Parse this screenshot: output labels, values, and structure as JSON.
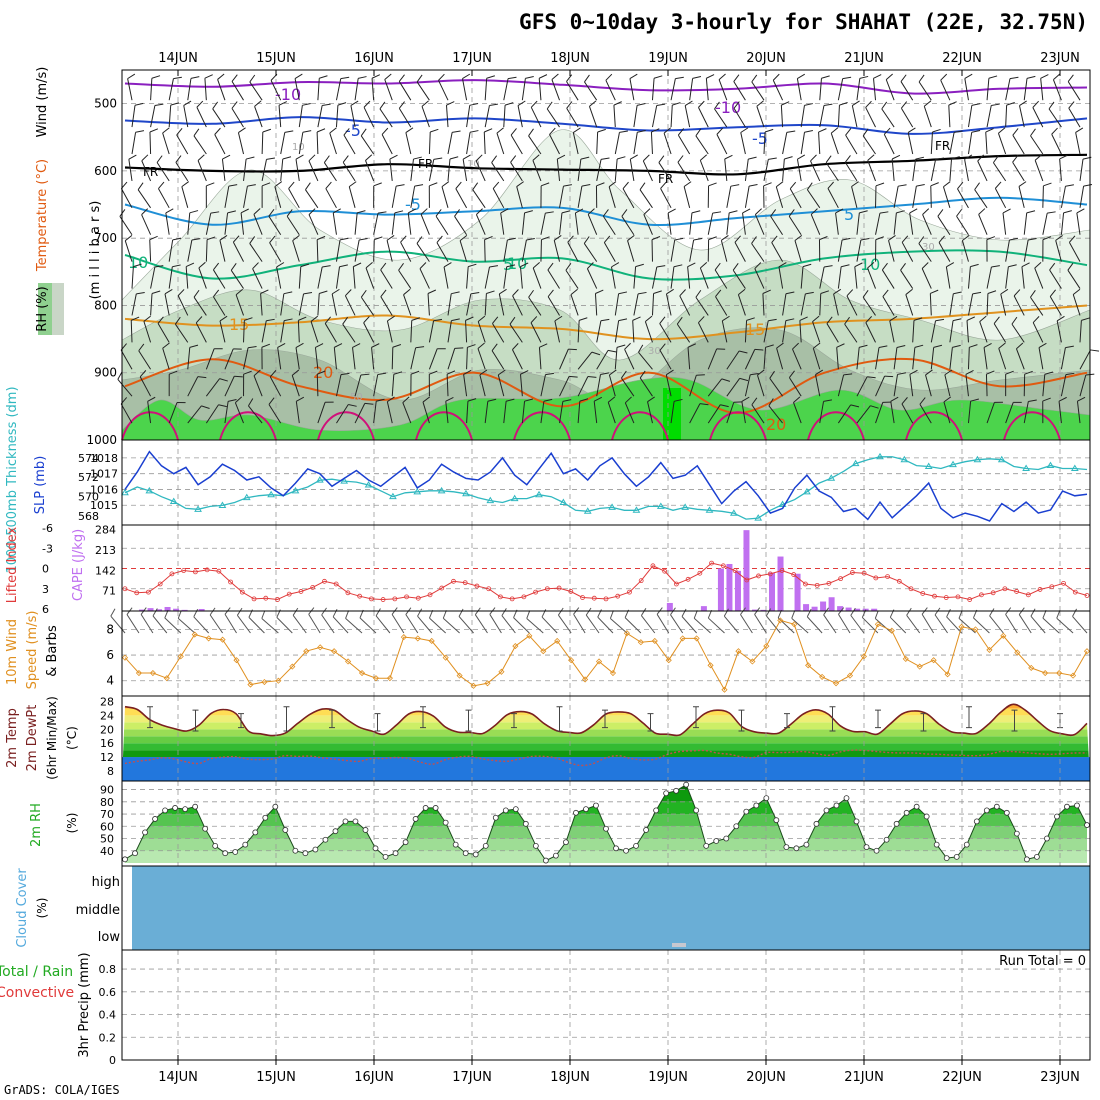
{
  "header": {
    "title": "GFS 0~10day 3-hourly for SHAHAT (22E, 32.75N)",
    "credit": "GrADS: COLA/IGES"
  },
  "colors": {
    "grid": "#999999",
    "temp_neg10": "#8a1fbf",
    "temp_neg5": "#1f46c9",
    "temp_fr": "#000000",
    "temp_5": "#1f8fd6",
    "temp_10": "#10b27a",
    "temp_15": "#e0921f",
    "temp_20": "#e05a10",
    "temp_25": "#d0107a",
    "slp": "#1a3fd0",
    "thickness": "#30b8c0",
    "cape": "#c070f0",
    "lifted_index": "#e03a3a",
    "wind_speed": "#e09020",
    "cloud": "#6aaed6",
    "rh2m": "#44bb44"
  },
  "chart_data": [
    {
      "panel": "upper-air",
      "type": "contour",
      "x_ticks": [
        "14JUN",
        "15JUN",
        "16JUN",
        "17JUN",
        "18JUN",
        "19JUN",
        "20JUN",
        "21JUN",
        "22JUN",
        "23JUN"
      ],
      "y_ticks": [
        "500",
        "600",
        "700",
        "800",
        "900",
        "1000"
      ],
      "ylabel_parts": [
        "RH (%)",
        "Temperature (°C)",
        "Wind (m/s)"
      ],
      "ylabel_units": "(m i l l i b a r s)",
      "ylim": [
        1000,
        450
      ],
      "contour_labels": [
        "-10",
        "-10",
        "-5",
        "-5",
        "-5",
        "FR",
        "FR",
        "FR",
        "FR",
        "5",
        "5",
        "10",
        "10",
        "10",
        "15",
        "15",
        "20",
        "20",
        "10",
        "10",
        "30",
        "30",
        "50"
      ],
      "isotherms": [
        {
          "label": "-10",
          "level": [
            470,
            475,
            468,
            470,
            465,
            472,
            480,
            478,
            470,
            485,
            478,
            476
          ]
        },
        {
          "label": "-5",
          "level": [
            525,
            530,
            520,
            528,
            522,
            530,
            540,
            535,
            532,
            545,
            535,
            522
          ]
        },
        {
          "label": "FR",
          "level": [
            595,
            600,
            600,
            590,
            596,
            598,
            600,
            605,
            590,
            585,
            578,
            576
          ]
        },
        {
          "label": "5",
          "level": [
            650,
            680,
            660,
            665,
            660,
            655,
            680,
            670,
            660,
            650,
            640,
            650
          ]
        },
        {
          "label": "10",
          "level": [
            725,
            760,
            740,
            720,
            735,
            730,
            760,
            755,
            730,
            720,
            720,
            740
          ]
        },
        {
          "label": "15",
          "level": [
            820,
            830,
            825,
            815,
            830,
            835,
            850,
            840,
            825,
            820,
            810,
            800
          ]
        },
        {
          "label": "20",
          "level": [
            920,
            880,
            920,
            940,
            900,
            950,
            900,
            960,
            900,
            880,
            920,
            900
          ]
        }
      ]
    },
    {
      "panel": "slp-thickness",
      "type": "line",
      "y_ticks_left": [
        "568",
        "570",
        "572",
        "574"
      ],
      "y_ticks_right": [
        "1015",
        "1016",
        "1017",
        "1018"
      ],
      "ylabel_left": "1000-500mb Thickness (dm)",
      "ylabel_right": "SLP (mb)",
      "series": [
        {
          "name": "SLP",
          "values": [
            1016.0,
            1017.1,
            1018.4,
            1017.5,
            1017.0,
            1017.4,
            1016.3,
            1016.8,
            1017.6,
            1017.2,
            1016.6,
            1016.8,
            1016.1,
            1015.6,
            1016.4,
            1017.3,
            1017.0,
            1016.2,
            1016.7,
            1017.2,
            1016.6,
            1016.2,
            1016.8,
            1017.4,
            1016.1,
            1016.6,
            1017.6,
            1017.1,
            1016.7,
            1016.6,
            1017.1,
            1018.0,
            1016.9,
            1016.3,
            1017.3,
            1018.3,
            1017.0,
            1017.3,
            1016.6,
            1017.5,
            1018.0,
            1017.0,
            1016.2,
            1016.8,
            1017.7,
            1016.7,
            1016.9,
            1017.5,
            1016.3,
            1015.1,
            1015.9,
            1016.5,
            1015.6,
            1014.5,
            1014.8,
            1016.1,
            1016.9,
            1015.9,
            1015.5,
            1014.6,
            1014.8,
            1014.1,
            1015.2,
            1014.2,
            1014.9,
            1015.6,
            1016.4,
            1014.8,
            1014.2,
            1014.5,
            1014.3,
            1014.0,
            1015.1,
            1014.6,
            1015.2,
            1014.5,
            1014.7,
            1015.9,
            1015.6,
            1015.7
          ]
        },
        {
          "name": "Thickness",
          "values": [
            570.4,
            571.0,
            570.6,
            570.0,
            569.5,
            568.8,
            568.7,
            569.0,
            569.1,
            569.4,
            569.9,
            570.1,
            570.2,
            570.1,
            570.6,
            571.0,
            571.7,
            571.8,
            571.6,
            571.5,
            571.2,
            570.6,
            570.0,
            570.4,
            570.5,
            570.6,
            570.6,
            570.5,
            570.3,
            569.9,
            569.6,
            569.4,
            569.8,
            569.8,
            570.2,
            570.0,
            569.4,
            568.6,
            568.5,
            568.8,
            568.9,
            568.6,
            568.6,
            569.0,
            569.0,
            568.6,
            568.9,
            568.7,
            568.6,
            568.5,
            568.3,
            567.7,
            567.8,
            568.6,
            569.2,
            569.7,
            570.5,
            571.4,
            571.9,
            572.6,
            573.4,
            573.8,
            574.1,
            574.1,
            573.8,
            573.2,
            573.1,
            572.9,
            573.3,
            573.6,
            573.8,
            573.9,
            573.8,
            573.1,
            572.9,
            572.8,
            573.2,
            572.9,
            572.9,
            572.8
          ]
        }
      ]
    },
    {
      "panel": "li-cape",
      "type": "bar",
      "y_ticks_left": [
        "-6",
        "-3",
        "0",
        "3",
        "6"
      ],
      "y_ticks_right": [
        "284",
        "213",
        "142",
        "71"
      ],
      "ylabel_left": "Lifted Index",
      "ylabel_right": "CAPE (J/kg)",
      "series": [
        {
          "name": "CAPE",
          "values": [
            0,
            0,
            5,
            10,
            6,
            14,
            8,
            4,
            0,
            7,
            0,
            0,
            0,
            0,
            0,
            0,
            0,
            0,
            0,
            0,
            0,
            0,
            0,
            0,
            0,
            0,
            0,
            0,
            0,
            0,
            0,
            0,
            0,
            0,
            0,
            0,
            0,
            0,
            0,
            0,
            0,
            0,
            0,
            0,
            0,
            0,
            0,
            0,
            0,
            0,
            0,
            0,
            0,
            0,
            0,
            0,
            0,
            0,
            0,
            0,
            0,
            0,
            0,
            0,
            28,
            0,
            0,
            0,
            17,
            0,
            148,
            164,
            140,
            282,
            5,
            4,
            134,
            190,
            0,
            130,
            24,
            15,
            33,
            48,
            17,
            12,
            8,
            8,
            8,
            0,
            0,
            0,
            0,
            0,
            0,
            0,
            0,
            0,
            0,
            0,
            0,
            0,
            0,
            0,
            0,
            0,
            0,
            0,
            0,
            0,
            0,
            0,
            0,
            0
          ]
        },
        {
          "name": "Lifted Index",
          "values": [
            3.0,
            3.6,
            3.5,
            2.3,
            0.8,
            0.3,
            0.5,
            0.2,
            0.4,
            2.0,
            3.5,
            4.5,
            4.4,
            4.6,
            3.8,
            3.4,
            2.8,
            1.9,
            2.3,
            3.6,
            4.1,
            4.5,
            4.6,
            4.5,
            4.2,
            4.4,
            3.9,
            2.9,
            1.9,
            2.1,
            2.6,
            3.0,
            4.2,
            4.5,
            4.2,
            3.5,
            3.0,
            2.9,
            3.4,
            4.3,
            4.4,
            4.5,
            4.1,
            3.5,
            1.8,
            -0.4,
            0.4,
            2.3,
            1.6,
            0.7,
            -0.8,
            -0.4,
            0.3,
            1.7,
            1.1,
            0.8,
            0.3,
            0.9,
            2.3,
            2.5,
            2.2,
            1.5,
            0.6,
            0.7,
            1.4,
            1.2,
            1.9,
            3.0,
            3.7,
            4.1,
            4.3,
            4.2,
            4.6,
            3.9,
            3.6,
            3.0,
            3.4,
            3.9,
            3.1,
            2.7,
            2.2,
            3.5,
            4.0
          ]
        }
      ]
    },
    {
      "panel": "wind-10m",
      "type": "line",
      "y_ticks": [
        "4",
        "6",
        "8"
      ],
      "ylabel": "10m Wind Speed (m/s) & Barbs",
      "series": [
        {
          "name": "Wind speed",
          "values": [
            5.8,
            4.6,
            4.6,
            4.2,
            5.9,
            7.6,
            7.3,
            7.2,
            5.6,
            3.7,
            3.9,
            4.0,
            5.1,
            6.3,
            6.6,
            6.3,
            5.5,
            4.6,
            4.2,
            4.2,
            7.4,
            7.3,
            7.1,
            5.8,
            4.4,
            3.6,
            3.8,
            4.7,
            6.7,
            7.5,
            6.3,
            7.1,
            5.6,
            4.1,
            5.5,
            4.6,
            7.7,
            7.0,
            7.1,
            5.6,
            7.3,
            7.3,
            5.2,
            3.3,
            6.3,
            5.5,
            6.7,
            8.7,
            8.4,
            5.2,
            4.3,
            3.8,
            4.4,
            5.9,
            8.4,
            7.9,
            5.7,
            5.1,
            5.6,
            4.5,
            8.2,
            8.0,
            6.4,
            7.5,
            6.2,
            5.0,
            4.6,
            4.6,
            4.4,
            6.3
          ]
        }
      ]
    },
    {
      "panel": "temp-2m",
      "type": "area",
      "y_ticks": [
        "8",
        "12",
        "16",
        "20",
        "24",
        "28"
      ],
      "ylabel": "2m Temp 2m DewPt (6hr Min/Max) (°C)",
      "series": [
        {
          "name": "Temp",
          "values": [
            26.5,
            25.7,
            22.8,
            21.2,
            20.2,
            19.5,
            21.2,
            24.6,
            25.7,
            24.5,
            19.5,
            18.7,
            18.2,
            18.9,
            21.7,
            24.3,
            25.8,
            25.4,
            22.8,
            20.6,
            19.5,
            18.6,
            21.2,
            24.4,
            25.1,
            23.8,
            20.6,
            19.2,
            19.1,
            18.8,
            21.1,
            24.2,
            25.1,
            24.4,
            21.6,
            19.6,
            19.1,
            19.0,
            21.3,
            24.4,
            25.0,
            24.5,
            21.8,
            18.9,
            18.6,
            18.4,
            21.4,
            24.5,
            25.5,
            24.7,
            20.8,
            19.3,
            18.9,
            18.9,
            21.5,
            24.4,
            25.6,
            24.4,
            21.0,
            19.4,
            19.3,
            18.6,
            21.4,
            24.4,
            25.3,
            24.5,
            21.5,
            19.3,
            18.9,
            18.8,
            21.4,
            24.9,
            27.2,
            25.5,
            22.4,
            19.6,
            18.7,
            18.5,
            21.7
          ]
        },
        {
          "name": "DewPt",
          "values": [
            10.2,
            10.8,
            11.2,
            11.8,
            11.5,
            10.6,
            10.2,
            11.6,
            12.0,
            12.1,
            11.4,
            11.3,
            11.5,
            12.4,
            12.2,
            12.3,
            11.8,
            11.4,
            11.0,
            10.8,
            11.6,
            11.6,
            11.9,
            11.6,
            10.5,
            10.0,
            11.3,
            12.0,
            12.2,
            11.5,
            11.0,
            10.8,
            11.5,
            12.2,
            12.2,
            11.7,
            10.4,
            9.6,
            10.2,
            11.8,
            12.4,
            11.6,
            11.2,
            11.4,
            12.8,
            13.6,
            13.8,
            13.9,
            13.2,
            12.8,
            12.1,
            11.9,
            13.3,
            13.3,
            13.4,
            13.6,
            13.1,
            12.5,
            13.5,
            14.0,
            13.9,
            13.6,
            13.3,
            13.2,
            13.2,
            12.9,
            12.8,
            12.6,
            12.5,
            12.4,
            12.8,
            13.6,
            13.6,
            13.3,
            13.0,
            12.8,
            13.0,
            13.2,
            13.2
          ]
        }
      ]
    },
    {
      "panel": "rh-2m",
      "type": "area",
      "y_ticks": [
        "40",
        "50",
        "60",
        "70",
        "80",
        "90"
      ],
      "ylabel": "2m RH (%)",
      "series": [
        {
          "name": "2m RH",
          "values": [
            33,
            38,
            55,
            66,
            73,
            75,
            74,
            76,
            58,
            44,
            38,
            39,
            45,
            55,
            67,
            76,
            57,
            40,
            38,
            41,
            49,
            56,
            64,
            64,
            57,
            42,
            35,
            38,
            47,
            66,
            75,
            75,
            63,
            45,
            38,
            37,
            44,
            67,
            73,
            74,
            62,
            44,
            32,
            36,
            47,
            71,
            74,
            77,
            58,
            42,
            40,
            44,
            57,
            73,
            87,
            89,
            94,
            73,
            44,
            48,
            50,
            60,
            72,
            77,
            83,
            65,
            43,
            42,
            45,
            62,
            73,
            77,
            83,
            64,
            43,
            40,
            49,
            62,
            71,
            76,
            68,
            45,
            34,
            35,
            45,
            64,
            73,
            76,
            71,
            54,
            33,
            35,
            50,
            68,
            76,
            77,
            61
          ]
        }
      ]
    },
    {
      "panel": "cloud-cover",
      "type": "area",
      "y_ticks": [
        "low",
        "middle",
        "high"
      ],
      "ylabel": "Cloud Cover (%)",
      "series": [
        {
          "name": "high",
          "values": [
            0,
            0,
            0,
            0,
            0,
            0,
            0,
            0,
            0,
            0
          ]
        },
        {
          "name": "middle",
          "values": [
            0,
            0,
            0,
            0,
            0,
            0,
            0,
            0,
            0,
            0
          ]
        },
        {
          "name": "low",
          "values": [
            0,
            0,
            0,
            0,
            0,
            0,
            0,
            0,
            0,
            0
          ]
        }
      ]
    },
    {
      "panel": "precip",
      "type": "bar",
      "y_ticks": [
        "0",
        "0.2",
        "0.4",
        "0.6",
        "0.8"
      ],
      "ylabel_total": "Total / Rain",
      "ylabel_convective": "Convective",
      "ylabel_units": "3hr Precip (mm)",
      "run_total": "Run Total = 0",
      "ylim": [
        0,
        0.95
      ],
      "series": [
        {
          "name": "Total / Rain",
          "values": [
            0,
            0,
            0,
            0,
            0,
            0,
            0,
            0,
            0,
            0
          ]
        },
        {
          "name": "Convective",
          "values": [
            0,
            0,
            0,
            0,
            0,
            0,
            0,
            0,
            0,
            0
          ]
        }
      ]
    }
  ]
}
